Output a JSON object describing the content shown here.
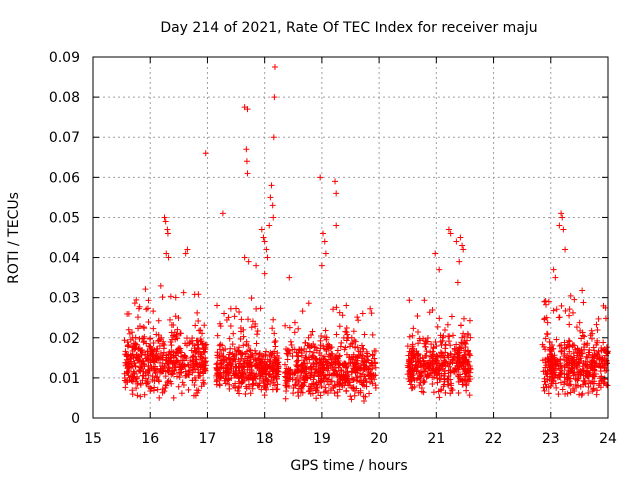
{
  "chart_data": {
    "type": "scatter",
    "title": "Day 214 of 2021, Rate Of TEC Index for receiver maju",
    "xlabel": "GPS time / hours",
    "ylabel": "ROTI / TECUs",
    "xlim": [
      15,
      24
    ],
    "ylim": [
      0,
      0.09
    ],
    "x_ticks": [
      "15",
      "16",
      "17",
      "18",
      "19",
      "20",
      "21",
      "22",
      "23",
      "24"
    ],
    "y_ticks": [
      "0",
      "0.01",
      "0.02",
      "0.03",
      "0.04",
      "0.05",
      "0.06",
      "0.07",
      "0.08",
      "0.09"
    ],
    "grid": true,
    "marker": "+",
    "series_color": "#ff0000",
    "clusters": [
      {
        "x_start": 15.55,
        "x_end": 16.98,
        "low": 0.005,
        "mid": 0.014,
        "spread": 0.007,
        "count": 520
      },
      {
        "x_start": 17.15,
        "x_end": 18.25,
        "low": 0.005,
        "mid": 0.012,
        "spread": 0.005,
        "count": 420
      },
      {
        "x_start": 18.35,
        "x_end": 19.95,
        "low": 0.004,
        "mid": 0.012,
        "spread": 0.006,
        "count": 600
      },
      {
        "x_start": 20.5,
        "x_end": 21.6,
        "low": 0.004,
        "mid": 0.013,
        "spread": 0.006,
        "count": 420
      },
      {
        "x_start": 22.85,
        "x_end": 24.0,
        "low": 0.005,
        "mid": 0.013,
        "spread": 0.006,
        "count": 440
      }
    ],
    "notable_points": [
      [
        18.18,
        0.0875
      ],
      [
        18.17,
        0.08
      ],
      [
        18.16,
        0.07
      ],
      [
        17.65,
        0.0775
      ],
      [
        17.7,
        0.077
      ],
      [
        17.68,
        0.067
      ],
      [
        17.69,
        0.064
      ],
      [
        17.7,
        0.061
      ],
      [
        16.97,
        0.066
      ],
      [
        17.27,
        0.051
      ],
      [
        16.25,
        0.05
      ],
      [
        16.27,
        0.049
      ],
      [
        16.3,
        0.047
      ],
      [
        16.31,
        0.046
      ],
      [
        16.28,
        0.041
      ],
      [
        16.32,
        0.04
      ],
      [
        16.65,
        0.042
      ],
      [
        16.62,
        0.041
      ],
      [
        17.95,
        0.047
      ],
      [
        17.98,
        0.045
      ],
      [
        18.0,
        0.044
      ],
      [
        18.03,
        0.042
      ],
      [
        18.05,
        0.04
      ],
      [
        18.12,
        0.058
      ],
      [
        18.1,
        0.055
      ],
      [
        18.14,
        0.053
      ],
      [
        18.15,
        0.05
      ],
      [
        18.08,
        0.048
      ],
      [
        18.43,
        0.035
      ],
      [
        17.65,
        0.04
      ],
      [
        17.72,
        0.039
      ],
      [
        17.85,
        0.038
      ],
      [
        18.0,
        0.036
      ],
      [
        18.97,
        0.06
      ],
      [
        19.23,
        0.059
      ],
      [
        19.25,
        0.056
      ],
      [
        19.25,
        0.048
      ],
      [
        19.02,
        0.046
      ],
      [
        19.05,
        0.044
      ],
      [
        19.07,
        0.041
      ],
      [
        19.0,
        0.038
      ],
      [
        20.98,
        0.041
      ],
      [
        21.22,
        0.047
      ],
      [
        21.25,
        0.046
      ],
      [
        21.35,
        0.044
      ],
      [
        21.42,
        0.045
      ],
      [
        21.45,
        0.043
      ],
      [
        21.47,
        0.042
      ],
      [
        21.4,
        0.039
      ],
      [
        21.05,
        0.037
      ],
      [
        23.18,
        0.051
      ],
      [
        23.2,
        0.05
      ],
      [
        23.15,
        0.048
      ],
      [
        23.22,
        0.047
      ],
      [
        23.25,
        0.042
      ],
      [
        23.05,
        0.037
      ],
      [
        23.08,
        0.035
      ]
    ]
  }
}
